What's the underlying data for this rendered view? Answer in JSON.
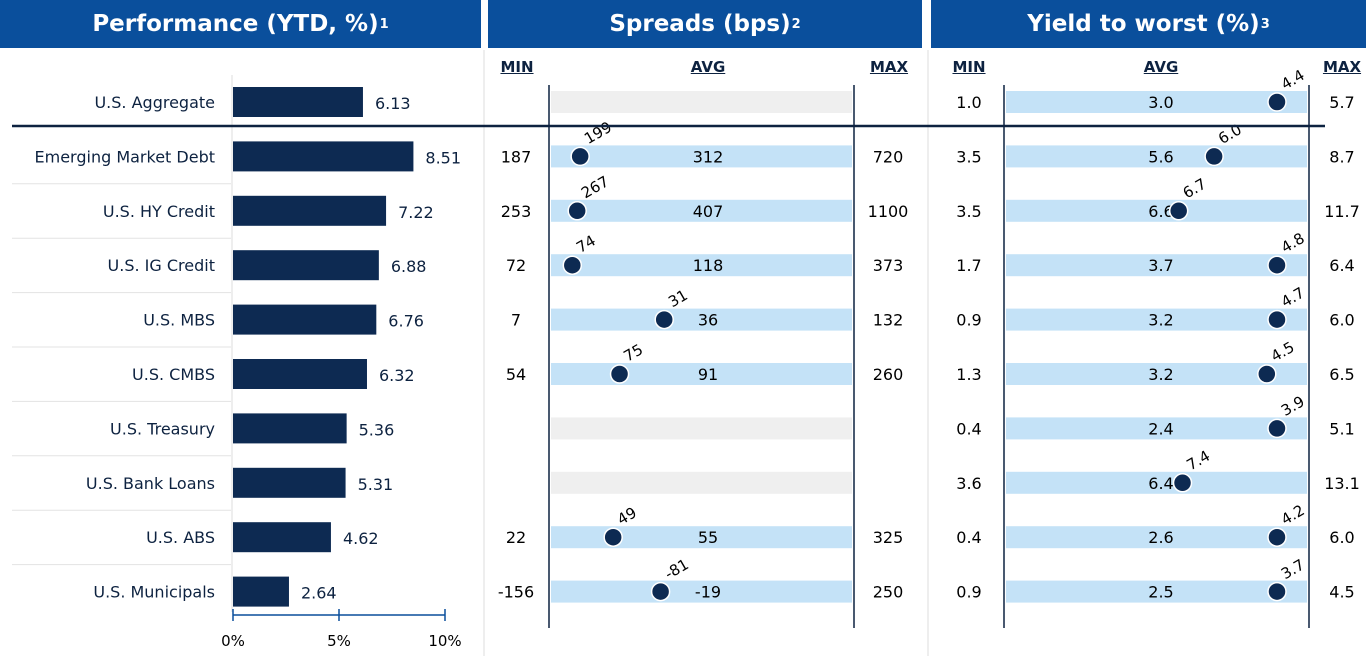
{
  "chart_data": {
    "type": "table",
    "panels": [
      {
        "title": "Performance (YTD, %)",
        "footnote": "1",
        "ticks": [
          "0%",
          "5%",
          "10%"
        ],
        "xlim": [
          0,
          10
        ]
      },
      {
        "title": "Spreads (bps)",
        "footnote": "2",
        "cols": [
          "MIN",
          "AVG",
          "MAX"
        ]
      },
      {
        "title": "Yield to worst (%)",
        "footnote": "3",
        "cols": [
          "MIN",
          "AVG",
          "MAX"
        ]
      }
    ],
    "rows": [
      {
        "name": "U.S. Aggregate",
        "perf": 6.13,
        "spread": null,
        "ytw": {
          "min": "1.0",
          "avg": "3.0",
          "max": "5.7",
          "cur": "4.4"
        }
      },
      {
        "name": "Emerging Market Debt",
        "perf": 8.51,
        "spread": {
          "min": "187",
          "avg": "312",
          "max": "720",
          "cur": "199"
        },
        "ytw": {
          "min": "3.5",
          "avg": "5.6",
          "max": "8.7",
          "cur": "6.0"
        }
      },
      {
        "name": "U.S. HY Credit",
        "perf": 7.22,
        "spread": {
          "min": "253",
          "avg": "407",
          "max": "1100",
          "cur": "267"
        },
        "ytw": {
          "min": "3.5",
          "avg": "6.6",
          "max": "11.7",
          "cur": "6.7"
        }
      },
      {
        "name": "U.S. IG Credit",
        "perf": 6.88,
        "spread": {
          "min": "72",
          "avg": "118",
          "max": "373",
          "cur": "74"
        },
        "ytw": {
          "min": "1.7",
          "avg": "3.7",
          "max": "6.4",
          "cur": "4.8"
        }
      },
      {
        "name": "U.S. MBS",
        "perf": 6.76,
        "spread": {
          "min": "7",
          "avg": "36",
          "max": "132",
          "cur": "31"
        },
        "ytw": {
          "min": "0.9",
          "avg": "3.2",
          "max": "6.0",
          "cur": "4.7"
        }
      },
      {
        "name": "U.S. CMBS",
        "perf": 6.32,
        "spread": {
          "min": "54",
          "avg": "91",
          "max": "260",
          "cur": "75"
        },
        "ytw": {
          "min": "1.3",
          "avg": "3.2",
          "max": "6.5",
          "cur": "4.5"
        }
      },
      {
        "name": "U.S. Treasury",
        "perf": 5.36,
        "spread": null,
        "ytw": {
          "min": "0.4",
          "avg": "2.4",
          "max": "5.1",
          "cur": "3.9"
        }
      },
      {
        "name": "U.S. Bank Loans",
        "perf": 5.31,
        "spread": null,
        "ytw": {
          "min": "3.6",
          "avg": "6.4",
          "max": "13.1",
          "cur": "7.4"
        }
      },
      {
        "name": "U.S. ABS",
        "perf": 4.62,
        "spread": {
          "min": "22",
          "avg": "55",
          "max": "325",
          "cur": "49"
        },
        "ytw": {
          "min": "0.4",
          "avg": "2.6",
          "max": "6.0",
          "cur": "4.2"
        }
      },
      {
        "name": "U.S. Municipals",
        "perf": 2.64,
        "spread": {
          "min": "-156",
          "avg": "-19",
          "max": "250",
          "cur": "-81"
        },
        "ytw": {
          "min": "0.9",
          "avg": "2.5",
          "max": "4.5",
          "cur": "3.7"
        }
      }
    ]
  },
  "colors": {
    "header": "#0a4f9c",
    "bar": "#0d2a52",
    "range": "#c4e2f7",
    "empty": "#efefef"
  }
}
